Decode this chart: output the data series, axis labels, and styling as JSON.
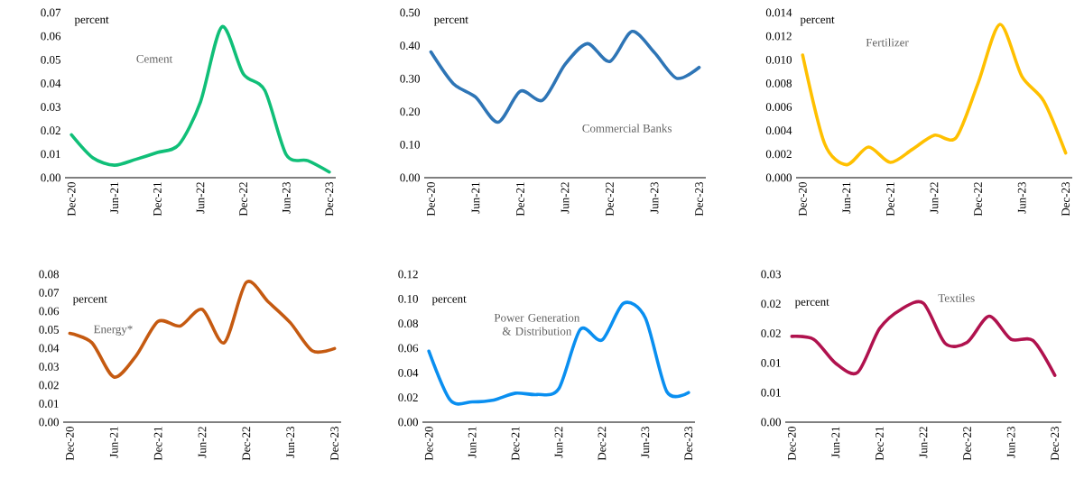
{
  "chart_data": [
    {
      "type": "line",
      "ylabel": "percent",
      "categories": [
        "Dec-20",
        null,
        "Jun-21",
        null,
        "Dec-21",
        null,
        "Jun-22",
        null,
        "Dec-22",
        null,
        "Jun-23",
        null,
        "Dec-23"
      ],
      "ylim": [
        0,
        0.07
      ],
      "yticks": [
        {
          "value": 0,
          "label": "0.00"
        },
        0.01,
        0.02,
        0.03,
        0.04,
        0.05,
        0.06,
        0.07
      ],
      "series": [
        {
          "name": "Cement",
          "color": "#10bf78",
          "values": [
            0.0182,
            0.0084,
            0.0053,
            0.0078,
            0.0107,
            0.014,
            0.032,
            0.064,
            0.044,
            0.037,
            0.0097,
            0.0072,
            0.0024
          ]
        }
      ]
    },
    {
      "type": "line",
      "ylabel": "percent",
      "categories": [
        "Dec-20",
        null,
        "Jun-21",
        null,
        "Dec-21",
        null,
        "Jun-22",
        null,
        "Dec-22",
        null,
        "Jun-23",
        null,
        "Dec-23"
      ],
      "ylim": [
        0,
        0.5
      ],
      "yticks": [
        {
          "value": 0,
          "label": "0.00"
        },
        {
          "value": 0.1,
          "label": "0.10"
        },
        {
          "value": 0.2,
          "label": "0.20"
        },
        {
          "value": 0.3,
          "label": "0.30"
        },
        {
          "value": 0.4,
          "label": "0.40"
        },
        {
          "value": 0.5,
          "label": "0.50"
        }
      ],
      "series": [
        {
          "name": "Commercial Banks",
          "color": "#2e75b6",
          "values": [
            0.381,
            0.285,
            0.244,
            0.168,
            0.262,
            0.235,
            0.343,
            0.406,
            0.352,
            0.443,
            0.379,
            0.301,
            0.334
          ]
        }
      ]
    },
    {
      "type": "line",
      "ylabel": "percent",
      "categories": [
        "Dec-20",
        null,
        "Jun-21",
        null,
        "Dec-21",
        null,
        "Jun-22",
        null,
        "Dec-22",
        null,
        "Jun-23",
        null,
        "Dec-23"
      ],
      "ylim": [
        0,
        0.014
      ],
      "yticks": [
        {
          "value": 0,
          "label": "0.000"
        },
        0.002,
        0.004,
        0.006,
        0.008,
        {
          "value": 0.01,
          "label": "0.010"
        },
        0.012,
        0.014
      ],
      "series": [
        {
          "name": "Fertilizer",
          "color": "#ffc000",
          "values": [
            0.0104,
            0.0029,
            0.0011,
            0.0026,
            0.0013,
            0.0024,
            0.0036,
            0.0034,
            0.008,
            0.013,
            0.0086,
            0.0065,
            0.0021
          ]
        }
      ]
    },
    {
      "type": "line",
      "ylabel": "percent",
      "categories": [
        "Dec-20",
        null,
        "Jun-21",
        null,
        "Dec-21",
        null,
        "Jun-22",
        null,
        "Dec-22",
        null,
        "Jun-23",
        null,
        "Dec-23"
      ],
      "ylim": [
        0,
        0.08
      ],
      "yticks": [
        {
          "value": 0,
          "label": "0.00"
        },
        0.01,
        0.02,
        0.03,
        0.04,
        0.05,
        0.06,
        0.07,
        0.08
      ],
      "series": [
        {
          "name": "Energy*",
          "color": "#c55a11",
          "values": [
            0.048,
            0.043,
            0.0244,
            0.0358,
            0.0545,
            0.052,
            0.061,
            0.043,
            0.0756,
            0.065,
            0.0537,
            0.0385,
            0.0398
          ]
        }
      ]
    },
    {
      "type": "line",
      "ylabel": "percent",
      "categories": [
        "Dec-20",
        null,
        "Jun-21",
        null,
        "Dec-21",
        null,
        "Jun-22",
        null,
        "Dec-22",
        null,
        "Jun-23",
        null,
        "Dec-23"
      ],
      "ylim": [
        0,
        0.12
      ],
      "yticks": [
        {
          "value": 0,
          "label": "0.00"
        },
        0.02,
        0.04,
        0.06,
        0.08,
        {
          "value": 0.1,
          "label": "0.10"
        },
        0.12
      ],
      "series": [
        {
          "name": "Power Generation & Distribution",
          "color": "#0a8ff0",
          "values": [
            0.0576,
            0.0176,
            0.0165,
            0.018,
            0.0235,
            0.0224,
            0.027,
            0.0753,
            0.0666,
            0.0965,
            0.0847,
            0.0247,
            0.024
          ]
        }
      ]
    },
    {
      "type": "line",
      "ylabel": "percent",
      "categories": [
        "Dec-20",
        null,
        "Jun-21",
        null,
        "Dec-21",
        null,
        "Jun-22",
        null,
        "Dec-22",
        null,
        "Jun-23",
        null,
        "Dec-23"
      ],
      "ylim": [
        0,
        0.025
      ],
      "yticks": [
        {
          "value": 0,
          "label": "0.00"
        },
        {
          "value": 0.005,
          "label": "0.01"
        },
        0.01,
        {
          "value": 0.015,
          "label": "0.02"
        },
        0.02,
        {
          "value": 0.025,
          "label": "0.03"
        }
      ],
      "series": [
        {
          "name": "Textiles",
          "color": "#b0124e",
          "values": [
            0.0145,
            0.014,
            0.00995,
            0.0084,
            0.0158,
            0.0191,
            0.0201,
            0.0133,
            0.0135,
            0.0179,
            0.014,
            0.0138,
            0.0079
          ]
        }
      ]
    }
  ]
}
